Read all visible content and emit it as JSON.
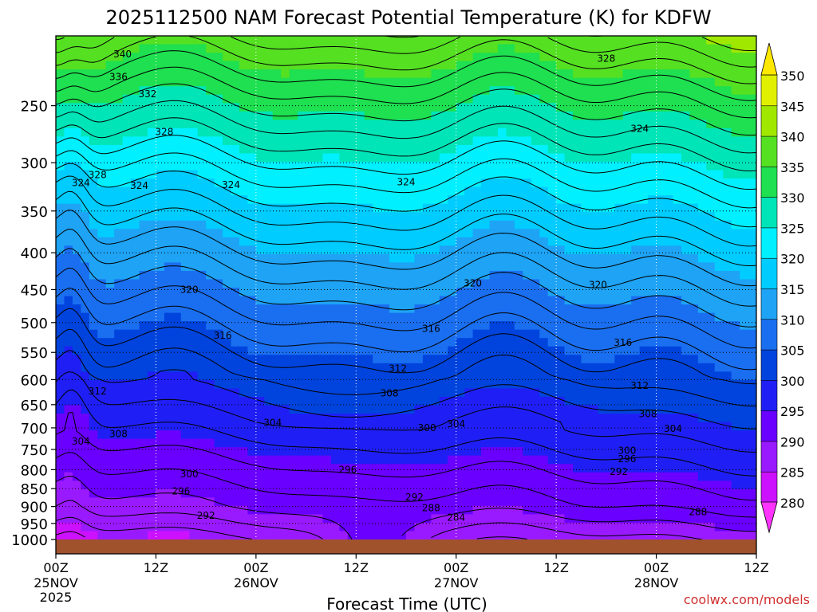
{
  "chart_data": {
    "type": "heatmap",
    "title": "2025112500 NAM Forecast Potential Temperature (K) for KDFW",
    "xlabel": "Forecast Time (UTC)",
    "ylabel": "",
    "credit": "coolwx.com/models",
    "x_ticks": [
      {
        "hours": 0,
        "label": "00Z",
        "date": "25NOV",
        "year": "2025"
      },
      {
        "hours": 12,
        "label": "12Z",
        "date": "",
        "year": ""
      },
      {
        "hours": 24,
        "label": "00Z",
        "date": "26NOV",
        "year": ""
      },
      {
        "hours": 36,
        "label": "12Z",
        "date": "",
        "year": ""
      },
      {
        "hours": 48,
        "label": "00Z",
        "date": "27NOV",
        "year": ""
      },
      {
        "hours": 60,
        "label": "12Z",
        "date": "",
        "year": ""
      },
      {
        "hours": 72,
        "label": "00Z",
        "date": "28NOV",
        "year": ""
      },
      {
        "hours": 84,
        "label": "12Z",
        "date": "",
        "year": ""
      }
    ],
    "x_range_hours": [
      0,
      84
    ],
    "pressure_levels": [
      "250",
      "300",
      "350",
      "400",
      "450",
      "500",
      "550",
      "600",
      "650",
      "700",
      "750",
      "800",
      "850",
      "900",
      "950",
      "1000"
    ],
    "y_range_hpa": [
      200,
      1000
    ],
    "ground_level_hpa": 1000,
    "colorbar": {
      "labels": [
        "350",
        "345",
        "340",
        "335",
        "330",
        "325",
        "320",
        "315",
        "310",
        "305",
        "300",
        "295",
        "290",
        "285",
        "280"
      ],
      "bins": [
        {
          "max": 280,
          "color": "#ff33ff"
        },
        {
          "max": 285,
          "color": "#cc11ff"
        },
        {
          "max": 290,
          "color": "#9a1aff"
        },
        {
          "max": 295,
          "color": "#6a00ff"
        },
        {
          "max": 300,
          "color": "#1f1ff5"
        },
        {
          "max": 305,
          "color": "#0044dd"
        },
        {
          "max": 310,
          "color": "#1a6ff0"
        },
        {
          "max": 315,
          "color": "#1ea3f5"
        },
        {
          "max": 320,
          "color": "#00ccff"
        },
        {
          "max": 325,
          "color": "#00f0ff"
        },
        {
          "max": 330,
          "color": "#00e5b8"
        },
        {
          "max": 335,
          "color": "#1ee050"
        },
        {
          "max": 340,
          "color": "#55e022"
        },
        {
          "max": 345,
          "color": "#a0e800"
        },
        {
          "max": 350,
          "color": "#e0f000"
        },
        {
          "max": 999,
          "color": "#ffe800"
        }
      ]
    },
    "contour_labels": [
      {
        "text": "340",
        "hours": 8,
        "hpa": 212
      },
      {
        "text": "336",
        "hours": 7.5,
        "hpa": 228
      },
      {
        "text": "332",
        "hours": 11,
        "hpa": 241
      },
      {
        "text": "328",
        "hours": 13,
        "hpa": 272
      },
      {
        "text": "328",
        "hours": 5,
        "hpa": 312
      },
      {
        "text": "324",
        "hours": 3,
        "hpa": 320
      },
      {
        "text": "324",
        "hours": 10,
        "hpa": 323
      },
      {
        "text": "324",
        "hours": 21,
        "hpa": 322
      },
      {
        "text": "324",
        "hours": 42,
        "hpa": 319
      },
      {
        "text": "328",
        "hours": 66,
        "hpa": 215
      },
      {
        "text": "324",
        "hours": 70,
        "hpa": 269
      },
      {
        "text": "320",
        "hours": 16,
        "hpa": 450
      },
      {
        "text": "320",
        "hours": 50,
        "hpa": 441
      },
      {
        "text": "320",
        "hours": 65,
        "hpa": 443
      },
      {
        "text": "316",
        "hours": 20,
        "hpa": 521
      },
      {
        "text": "316",
        "hours": 45,
        "hpa": 510
      },
      {
        "text": "316",
        "hours": 68,
        "hpa": 533
      },
      {
        "text": "312",
        "hours": 41,
        "hpa": 579
      },
      {
        "text": "312",
        "hours": 5,
        "hpa": 623
      },
      {
        "text": "312",
        "hours": 70,
        "hpa": 612
      },
      {
        "text": "308",
        "hours": 40,
        "hpa": 627
      },
      {
        "text": "308",
        "hours": 7.5,
        "hpa": 714
      },
      {
        "text": "308",
        "hours": 71,
        "hpa": 670
      },
      {
        "text": "304",
        "hours": 26,
        "hpa": 689
      },
      {
        "text": "304",
        "hours": 3,
        "hpa": 731
      },
      {
        "text": "304",
        "hours": 48,
        "hpa": 691
      },
      {
        "text": "304",
        "hours": 74,
        "hpa": 702
      },
      {
        "text": "300",
        "hours": 44.5,
        "hpa": 700
      },
      {
        "text": "300",
        "hours": 68.5,
        "hpa": 753
      },
      {
        "text": "296",
        "hours": 68.5,
        "hpa": 773
      },
      {
        "text": "300",
        "hours": 16,
        "hpa": 812
      },
      {
        "text": "296",
        "hours": 35,
        "hpa": 800
      },
      {
        "text": "292",
        "hours": 67.5,
        "hpa": 805
      },
      {
        "text": "296",
        "hours": 15,
        "hpa": 857
      },
      {
        "text": "292",
        "hours": 43,
        "hpa": 874
      },
      {
        "text": "288",
        "hours": 45,
        "hpa": 904
      },
      {
        "text": "284",
        "hours": 48,
        "hpa": 932
      },
      {
        "text": "288",
        "hours": 77,
        "hpa": 916
      },
      {
        "text": "292",
        "hours": 18,
        "hpa": 926
      }
    ]
  }
}
